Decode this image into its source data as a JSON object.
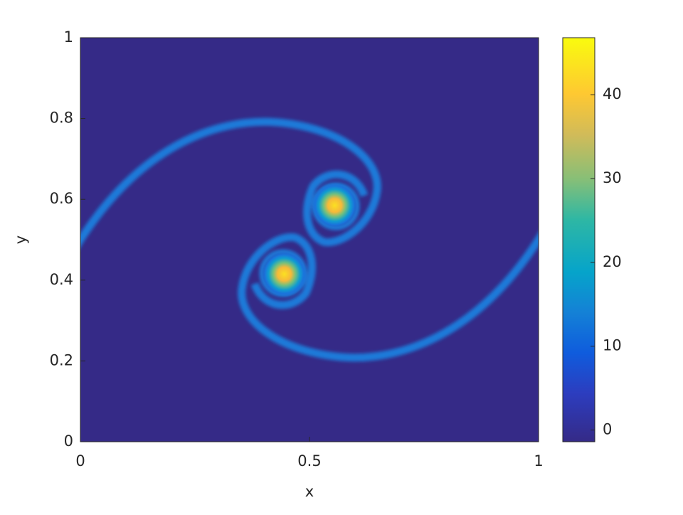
{
  "chart_data": {
    "type": "heatmap",
    "x_label": "x",
    "y_label": "y",
    "xlim": [
      0,
      1
    ],
    "ylim": [
      0,
      1
    ],
    "xticks": [
      0,
      0.5,
      1
    ],
    "yticks": [
      0,
      0.2,
      0.4,
      0.6,
      0.8,
      1
    ],
    "clim": [
      -1.4,
      46.8
    ],
    "cticks": [
      0,
      10,
      20,
      30,
      40
    ],
    "background_color": "#352a87",
    "vortices": [
      {
        "x": 0.445,
        "y": 0.415,
        "peak": 44
      },
      {
        "x": 0.555,
        "y": 0.585,
        "peak": 44
      }
    ]
  }
}
